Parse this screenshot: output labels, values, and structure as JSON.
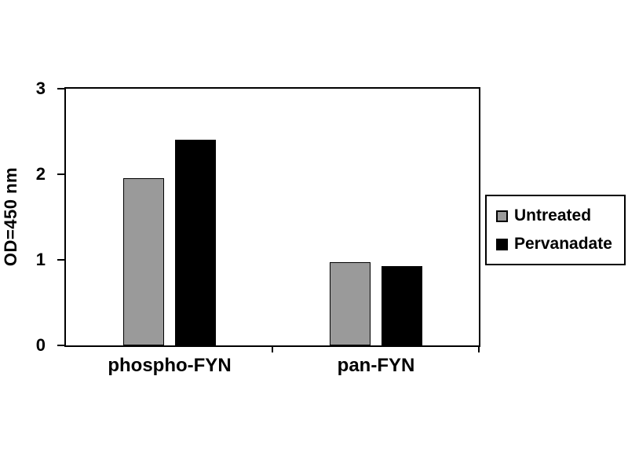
{
  "chart_data": {
    "type": "bar",
    "categories": [
      "phospho-FYN",
      "pan-FYN"
    ],
    "series": [
      {
        "name": "Untreated",
        "color": "#9a9a9a",
        "values": [
          1.95,
          0.97
        ]
      },
      {
        "name": "Pervanadate",
        "color": "#000000",
        "values": [
          2.4,
          0.93
        ]
      }
    ],
    "title": "",
    "xlabel": "",
    "ylabel": "OD=450 nm",
    "ylim": [
      0,
      3
    ],
    "yticks": [
      0,
      1,
      2,
      3
    ],
    "grid": "off",
    "legend_position": "right",
    "bar_outline_color": "#000000",
    "axis_color": "#000000",
    "background_color": "#ffffff"
  }
}
